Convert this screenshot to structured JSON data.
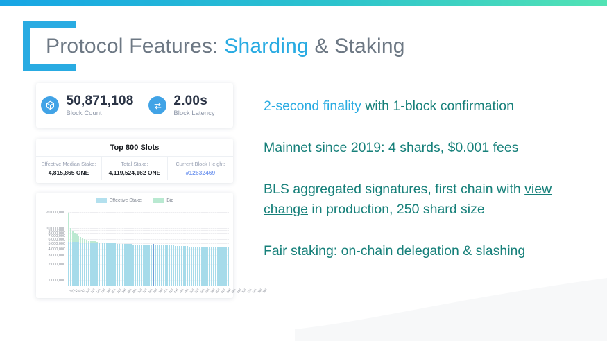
{
  "slide": {
    "title": {
      "prefix": "Protocol Features: ",
      "highlight": "Sharding",
      "suffix": " & Staking"
    },
    "colors": {
      "topbar_left": "#17a5e5",
      "topbar_right": "#52e3b4",
      "accent_blue": "#29abe2",
      "teal_text": "#17807a",
      "title_gray": "#6d7884",
      "link_blue": "#7d9ff0",
      "bar_effective": "#a6dbea",
      "bar_bid": "#bce9d2",
      "wave_gray": "#f7f8f9"
    }
  },
  "stats_card": {
    "stats": [
      {
        "icon": "block-cube-icon",
        "value": "50,871,108",
        "label": "Block Count"
      },
      {
        "icon": "latency-arrows-icon",
        "value": "2.00s",
        "label": "Block Latency"
      }
    ]
  },
  "slots_card": {
    "title": "Top 800 Slots",
    "cells": [
      {
        "label": "Effective Median Stake:",
        "value": "4,815,865 ONE",
        "link": false
      },
      {
        "label": "Total Stake:",
        "value": "4,119,524,162 ONE",
        "link": false
      },
      {
        "label": "Current Block Height:",
        "value": "#12632469",
        "link": true
      }
    ]
  },
  "bullets": [
    {
      "segments": [
        {
          "text": "2-second finality",
          "style": "highlight"
        },
        {
          "text": " with 1-block confirmation",
          "style": "normal"
        }
      ]
    },
    {
      "segments": [
        {
          "text": "Mainnet since 2019: 4 shards, $0.001 fees",
          "style": "normal"
        }
      ]
    },
    {
      "segments": [
        {
          "text": "BLS aggregated signatures, first chain with ",
          "style": "normal"
        },
        {
          "text": "view change",
          "style": "underline"
        },
        {
          "text": " in production, 250 shard size",
          "style": "normal"
        }
      ]
    },
    {
      "segments": [
        {
          "text": "Fair staking: on-chain delegation & slashing",
          "style": "normal"
        }
      ]
    }
  ],
  "chart_data": {
    "type": "bar",
    "title": "",
    "xlabel": "",
    "ylabel": "",
    "y_scale": "log",
    "y_min": 800000,
    "y_max": 22000000,
    "grid": true,
    "legend_position": "top",
    "legend": [
      {
        "label": "Effective Stake",
        "color": "#b3e0ee"
      },
      {
        "label": "Bid",
        "color": "#b9e9d1"
      }
    ],
    "y_gridlines": [
      {
        "v": 1000000,
        "label": "1,000,000"
      },
      {
        "v": 2000000,
        "label": "2,000,000"
      },
      {
        "v": 3000000,
        "label": "3,000,000"
      },
      {
        "v": 4000000,
        "label": "4,000,000"
      },
      {
        "v": 5000000,
        "label": "5,000,000"
      },
      {
        "v": 6000000,
        "label": "6,000,000"
      },
      {
        "v": 7000000,
        "label": "7,000,000"
      },
      {
        "v": 8000000,
        "label": "8,000,000"
      },
      {
        "v": 9000000,
        "label": "9,000,000"
      },
      {
        "v": 10000000,
        "label": "10,000,000"
      },
      {
        "v": 20000000,
        "label": "20,000,000"
      }
    ],
    "x_tick_labels": [
      "1",
      "21",
      "41",
      "61",
      "81",
      "101",
      "121",
      "141",
      "161",
      "181",
      "201",
      "221",
      "241",
      "261",
      "281",
      "301",
      "321",
      "341",
      "361",
      "381",
      "401",
      "421",
      "441",
      "461",
      "481",
      "501",
      "521",
      "541",
      "561",
      "581",
      "601",
      "621",
      "641",
      "661",
      "681",
      "701",
      "721",
      "741",
      "761",
      "781"
    ],
    "median_index": 42,
    "series": [
      {
        "name": "Bid",
        "values": [
          20000000,
          10200000,
          9000000,
          8300000,
          7800000,
          7300000,
          6900000,
          6600000,
          6300000,
          6100000,
          5950000,
          5850000,
          5750000,
          5650000,
          5560000,
          5300000,
          5280000,
          5260000,
          5240000,
          5220000,
          5200000,
          5180000,
          5160000,
          5140000,
          5120000,
          5100000,
          5080000,
          5060000,
          5040000,
          5020000,
          5000000,
          4980000,
          4960000,
          4940000,
          4920000,
          4900000,
          4880000,
          4860000,
          4850000,
          4840000,
          4830000,
          4820000,
          4810000,
          4800000,
          4790000,
          4780000,
          4770000,
          4760000,
          4750000,
          4740000,
          4720000,
          4700000,
          4680000,
          4660000,
          4640000,
          4620000,
          4600000,
          4580000,
          4560000,
          4540000,
          4520000,
          4500000,
          4480000,
          4470000,
          4460000,
          4450000,
          4440000,
          4430000,
          4420000,
          4410000,
          4400000,
          4390000,
          4380000,
          4370000,
          4360000,
          4350000,
          4340000,
          4330000,
          4320000,
          4310000
        ]
      },
      {
        "name": "Effective Stake",
        "values": [
          5500000,
          5490000,
          5480000,
          5470000,
          5460000,
          5450000,
          5440000,
          5430000,
          5420000,
          5410000,
          5400000,
          5380000,
          5360000,
          5340000,
          5320000,
          5300000,
          5280000,
          5260000,
          5240000,
          5220000,
          5200000,
          5180000,
          5160000,
          5140000,
          5120000,
          5100000,
          5080000,
          5060000,
          5040000,
          5020000,
          5000000,
          4980000,
          4960000,
          4940000,
          4920000,
          4900000,
          4880000,
          4860000,
          4850000,
          4840000,
          4830000,
          4820000,
          4810000,
          4800000,
          4790000,
          4780000,
          4770000,
          4760000,
          4750000,
          4740000,
          4720000,
          4700000,
          4680000,
          4660000,
          4640000,
          4620000,
          4600000,
          4580000,
          4560000,
          4540000,
          4520000,
          4500000,
          4480000,
          4470000,
          4460000,
          4450000,
          4440000,
          4430000,
          4420000,
          4410000,
          4400000,
          4390000,
          4380000,
          4370000,
          4360000,
          4350000,
          4340000,
          4330000,
          4320000,
          4310000
        ]
      }
    ]
  }
}
